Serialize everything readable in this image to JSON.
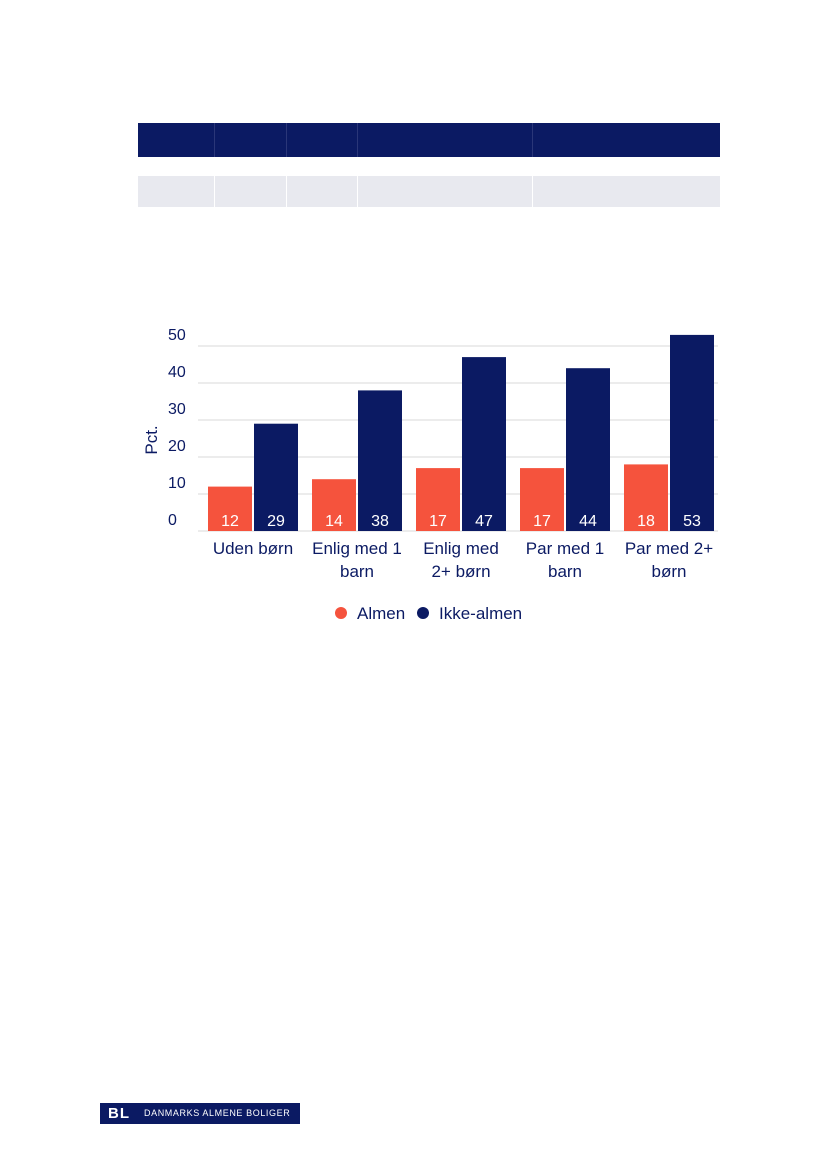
{
  "colors": {
    "almen": "#f5533d",
    "ikke_almen": "#0b1a63",
    "grid": "#d9d9d9",
    "table_header": "#0b1a63",
    "table_row": "#e8e9ef"
  },
  "chart_data": {
    "type": "bar",
    "categories": [
      [
        "Uden børn"
      ],
      [
        "Enlig med 1",
        "barn"
      ],
      [
        "Enlig med",
        "2+ børn"
      ],
      [
        "Par med 1",
        "barn"
      ],
      [
        "Par med 2+",
        "børn"
      ]
    ],
    "series": [
      {
        "name": "Almen",
        "color": "#f5533d",
        "values": [
          12,
          14,
          17,
          17,
          18
        ]
      },
      {
        "name": "Ikke-almen",
        "color": "#0b1a63",
        "values": [
          29,
          38,
          47,
          44,
          53
        ]
      }
    ],
    "ylabel": "Pct.",
    "ylim": [
      0,
      50
    ],
    "yticks": [
      0,
      10,
      20,
      30,
      40,
      50
    ],
    "grid": true,
    "legend": "bottom"
  },
  "footer": {
    "logo_mark": "BL",
    "logo_text": "DANMARKS ALMENE BOLIGER"
  }
}
